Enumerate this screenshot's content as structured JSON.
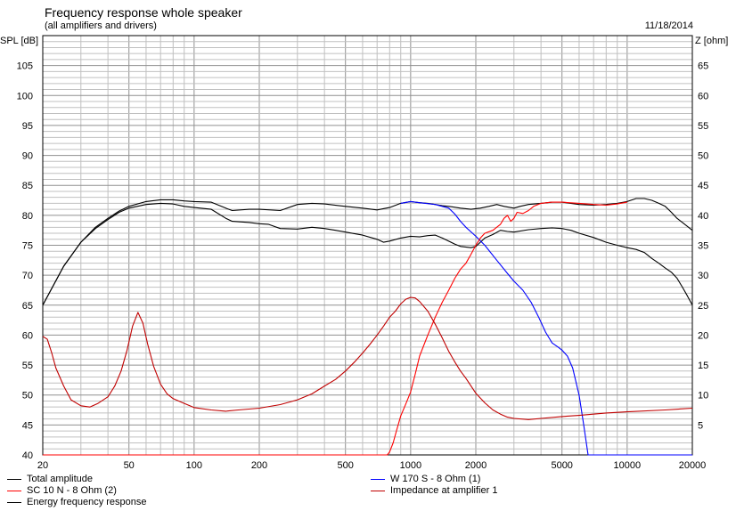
{
  "header": {
    "title": "Frequency response whole speaker",
    "subtitle": "(all amplifiers and drivers)",
    "date": "11/18/2014"
  },
  "colors": {
    "grid": "#c0c0c0",
    "black": "#000000",
    "blue": "#0000ff",
    "red": "#ff0000",
    "darkred": "#c00000"
  },
  "chart_data": {
    "type": "line",
    "x_scale": "log",
    "xlim": [
      20,
      20000
    ],
    "ylim_left": [
      40,
      110
    ],
    "ylim_right": [
      0,
      70
    ],
    "ylabel_left": "SPL [dB]",
    "ylabel_right": "Z [ohm]",
    "x_ticks": [
      20,
      50,
      100,
      200,
      500,
      1000,
      2000,
      5000,
      10000,
      20000
    ],
    "x_tick_labels": [
      "20",
      "50",
      "100",
      "200",
      "500",
      "1000",
      "2000",
      "5000",
      "10000",
      "20000"
    ],
    "y_left_ticks": [
      "45",
      "50",
      "55",
      "60",
      "65",
      "70",
      "75",
      "80",
      "85",
      "90",
      "95",
      "100",
      "105"
    ],
    "y_left_bottom_label": "40",
    "y_right_ticks": [
      "5",
      "10",
      "15",
      "20",
      "25",
      "30",
      "35",
      "40",
      "45",
      "50",
      "55",
      "60",
      "65"
    ],
    "legend": [
      {
        "label": "Total amplitude",
        "color": "#000000",
        "column": 0
      },
      {
        "label": "SC 10 N - 8 Ohm (2)",
        "color": "#ff0000",
        "column": 0
      },
      {
        "label": "Energy frequency response",
        "color": "#000000",
        "column": 0
      },
      {
        "label": "W 170 S - 8 Ohm (1)",
        "color": "#0000ff",
        "column": 1
      },
      {
        "label": "Impedance at amplifier 1",
        "color": "#c00000",
        "column": 1
      }
    ],
    "series": [
      {
        "name": "Total amplitude",
        "color": "#000000",
        "axis": "left",
        "points": [
          [
            20,
            65
          ],
          [
            25,
            71.5
          ],
          [
            30,
            75.5
          ],
          [
            35,
            78
          ],
          [
            40,
            79.5
          ],
          [
            45,
            80.7
          ],
          [
            50,
            81.5
          ],
          [
            60,
            82.3
          ],
          [
            70,
            82.6
          ],
          [
            80,
            82.6
          ],
          [
            90,
            82.4
          ],
          [
            100,
            82.3
          ],
          [
            120,
            82.2
          ],
          [
            140,
            81.2
          ],
          [
            150,
            80.8
          ],
          [
            180,
            81
          ],
          [
            200,
            81
          ],
          [
            250,
            80.8
          ],
          [
            300,
            81.8
          ],
          [
            350,
            82
          ],
          [
            400,
            81.9
          ],
          [
            500,
            81.5
          ],
          [
            600,
            81.2
          ],
          [
            700,
            80.9
          ],
          [
            800,
            81.3
          ],
          [
            900,
            82
          ],
          [
            1000,
            82.3
          ],
          [
            1100,
            82.1
          ],
          [
            1200,
            82
          ],
          [
            1300,
            81.8
          ],
          [
            1400,
            81.6
          ],
          [
            1500,
            81.5
          ],
          [
            1700,
            81.2
          ],
          [
            1900,
            81
          ],
          [
            2100,
            81.2
          ],
          [
            2300,
            81.5
          ],
          [
            2500,
            81.8
          ],
          [
            2700,
            81.5
          ],
          [
            3000,
            81.2
          ],
          [
            3200,
            81.5
          ],
          [
            3500,
            81.8
          ],
          [
            4000,
            82
          ],
          [
            4500,
            82.2
          ],
          [
            5000,
            82.2
          ],
          [
            6000,
            81.8
          ],
          [
            7000,
            81.7
          ],
          [
            8000,
            81.8
          ],
          [
            9000,
            82
          ],
          [
            10000,
            82.3
          ],
          [
            11000,
            82.8
          ],
          [
            12000,
            82.8
          ],
          [
            13000,
            82.5
          ],
          [
            14000,
            82
          ],
          [
            15000,
            81.5
          ],
          [
            16000,
            80.5
          ],
          [
            17000,
            79.5
          ],
          [
            18000,
            78.8
          ],
          [
            20000,
            77.5
          ]
        ]
      },
      {
        "name": "Energy frequency response",
        "color": "#000000",
        "axis": "left",
        "points": [
          [
            20,
            65
          ],
          [
            25,
            71.5
          ],
          [
            30,
            75.5
          ],
          [
            35,
            77.8
          ],
          [
            40,
            79.3
          ],
          [
            45,
            80.5
          ],
          [
            50,
            81.2
          ],
          [
            60,
            81.8
          ],
          [
            70,
            82
          ],
          [
            80,
            81.9
          ],
          [
            90,
            81.5
          ],
          [
            100,
            81.3
          ],
          [
            120,
            81
          ],
          [
            140,
            79.5
          ],
          [
            150,
            79
          ],
          [
            180,
            78.8
          ],
          [
            200,
            78.6
          ],
          [
            220,
            78.5
          ],
          [
            250,
            77.8
          ],
          [
            300,
            77.7
          ],
          [
            350,
            78
          ],
          [
            400,
            77.8
          ],
          [
            450,
            77.5
          ],
          [
            500,
            77.2
          ],
          [
            600,
            76.7
          ],
          [
            700,
            76
          ],
          [
            750,
            75.5
          ],
          [
            800,
            75.7
          ],
          [
            900,
            76.2
          ],
          [
            1000,
            76.5
          ],
          [
            1100,
            76.4
          ],
          [
            1200,
            76.6
          ],
          [
            1300,
            76.7
          ],
          [
            1400,
            76.2
          ],
          [
            1600,
            75.2
          ],
          [
            1700,
            74.8
          ],
          [
            1900,
            74.6
          ],
          [
            2000,
            74.8
          ],
          [
            2100,
            75.5
          ],
          [
            2200,
            76.2
          ],
          [
            2400,
            76.8
          ],
          [
            2600,
            77.5
          ],
          [
            2800,
            77.3
          ],
          [
            3000,
            77.2
          ],
          [
            3500,
            77.6
          ],
          [
            4000,
            77.8
          ],
          [
            4500,
            77.9
          ],
          [
            5000,
            77.8
          ],
          [
            5500,
            77.5
          ],
          [
            6000,
            77
          ],
          [
            7000,
            76.3
          ],
          [
            8000,
            75.5
          ],
          [
            9000,
            75
          ],
          [
            10000,
            74.6
          ],
          [
            11000,
            74.3
          ],
          [
            12000,
            73.8
          ],
          [
            13000,
            72.8
          ],
          [
            14000,
            72
          ],
          [
            15000,
            71.2
          ],
          [
            16000,
            70.5
          ],
          [
            17000,
            69.5
          ],
          [
            18000,
            68
          ],
          [
            19000,
            66.5
          ],
          [
            20000,
            65
          ]
        ]
      },
      {
        "name": "W 170 S - 8 Ohm (1)",
        "color": "#0000ff",
        "axis": "left",
        "points": [
          [
            900,
            82
          ],
          [
            1000,
            82.3
          ],
          [
            1100,
            82.1
          ],
          [
            1300,
            81.8
          ],
          [
            1500,
            81.2
          ],
          [
            1600,
            80.2
          ],
          [
            1700,
            79
          ],
          [
            1800,
            78
          ],
          [
            2000,
            76.5
          ],
          [
            2200,
            75
          ],
          [
            2500,
            72.5
          ],
          [
            2800,
            70.3
          ],
          [
            3000,
            69
          ],
          [
            3300,
            67.5
          ],
          [
            3600,
            65.5
          ],
          [
            3900,
            63
          ],
          [
            4200,
            60.5
          ],
          [
            4500,
            58.7
          ],
          [
            4800,
            58
          ],
          [
            5000,
            57.5
          ],
          [
            5300,
            56.5
          ],
          [
            5600,
            54.5
          ],
          [
            6000,
            50
          ],
          [
            6300,
            45
          ],
          [
            6600,
            40
          ],
          [
            20000,
            40
          ]
        ]
      },
      {
        "name": "SC 10 N - 8 Ohm (2)",
        "color": "#ff0000",
        "axis": "left",
        "points": [
          [
            20,
            40
          ],
          [
            780,
            40
          ],
          [
            800,
            40.5
          ],
          [
            830,
            42
          ],
          [
            860,
            44
          ],
          [
            900,
            46.5
          ],
          [
            950,
            48.5
          ],
          [
            1000,
            50.5
          ],
          [
            1050,
            53.5
          ],
          [
            1100,
            56.5
          ],
          [
            1200,
            60
          ],
          [
            1300,
            63
          ],
          [
            1400,
            65.5
          ],
          [
            1500,
            67.5
          ],
          [
            1600,
            69.5
          ],
          [
            1700,
            71
          ],
          [
            1800,
            72
          ],
          [
            1900,
            73.5
          ],
          [
            2000,
            75
          ],
          [
            2100,
            76.2
          ],
          [
            2200,
            77
          ],
          [
            2400,
            77.5
          ],
          [
            2600,
            78.5
          ],
          [
            2700,
            79.5
          ],
          [
            2800,
            80
          ],
          [
            2900,
            79
          ],
          [
            3000,
            79.5
          ],
          [
            3100,
            80.5
          ],
          [
            3300,
            80.3
          ],
          [
            3500,
            80.8
          ],
          [
            3700,
            81.5
          ],
          [
            4000,
            82
          ],
          [
            4500,
            82.2
          ],
          [
            5000,
            82.2
          ],
          [
            6000,
            82
          ],
          [
            7000,
            81.8
          ],
          [
            8000,
            81.7
          ],
          [
            9000,
            81.9
          ],
          [
            10000,
            82.2
          ]
        ]
      },
      {
        "name": "Impedance at amplifier 1",
        "color": "#c00000",
        "axis": "right",
        "points": [
          [
            20,
            19.8
          ],
          [
            21,
            19.3
          ],
          [
            22,
            17
          ],
          [
            23,
            14.5
          ],
          [
            25,
            11.5
          ],
          [
            27,
            9.2
          ],
          [
            30,
            8.2
          ],
          [
            33,
            8
          ],
          [
            36,
            8.6
          ],
          [
            40,
            9.7
          ],
          [
            43,
            11.5
          ],
          [
            46,
            14
          ],
          [
            49,
            17.5
          ],
          [
            52,
            21.5
          ],
          [
            55,
            23.8
          ],
          [
            58,
            22
          ],
          [
            61,
            18.5
          ],
          [
            65,
            14.8
          ],
          [
            70,
            11.8
          ],
          [
            75,
            10.2
          ],
          [
            80,
            9.4
          ],
          [
            90,
            8.6
          ],
          [
            100,
            7.9
          ],
          [
            120,
            7.5
          ],
          [
            140,
            7.3
          ],
          [
            160,
            7.5
          ],
          [
            200,
            7.8
          ],
          [
            250,
            8.4
          ],
          [
            300,
            9.2
          ],
          [
            350,
            10.2
          ],
          [
            400,
            11.5
          ],
          [
            450,
            12.6
          ],
          [
            500,
            14
          ],
          [
            550,
            15.5
          ],
          [
            600,
            17
          ],
          [
            650,
            18.5
          ],
          [
            700,
            20
          ],
          [
            750,
            21.5
          ],
          [
            800,
            23
          ],
          [
            850,
            24
          ],
          [
            900,
            25.2
          ],
          [
            950,
            26
          ],
          [
            1000,
            26.3
          ],
          [
            1050,
            26.2
          ],
          [
            1100,
            25.6
          ],
          [
            1200,
            24
          ],
          [
            1300,
            21.8
          ],
          [
            1400,
            19.5
          ],
          [
            1500,
            17.3
          ],
          [
            1600,
            15.5
          ],
          [
            1700,
            14
          ],
          [
            1800,
            12.8
          ],
          [
            1900,
            11.5
          ],
          [
            2000,
            10.3
          ],
          [
            2200,
            8.7
          ],
          [
            2400,
            7.5
          ],
          [
            2600,
            6.8
          ],
          [
            2800,
            6.3
          ],
          [
            3000,
            6.1
          ],
          [
            3500,
            5.9
          ],
          [
            4000,
            6.1
          ],
          [
            5000,
            6.4
          ],
          [
            6000,
            6.6
          ],
          [
            8000,
            7
          ],
          [
            10000,
            7.2
          ],
          [
            15000,
            7.5
          ],
          [
            20000,
            7.8
          ]
        ]
      }
    ]
  }
}
